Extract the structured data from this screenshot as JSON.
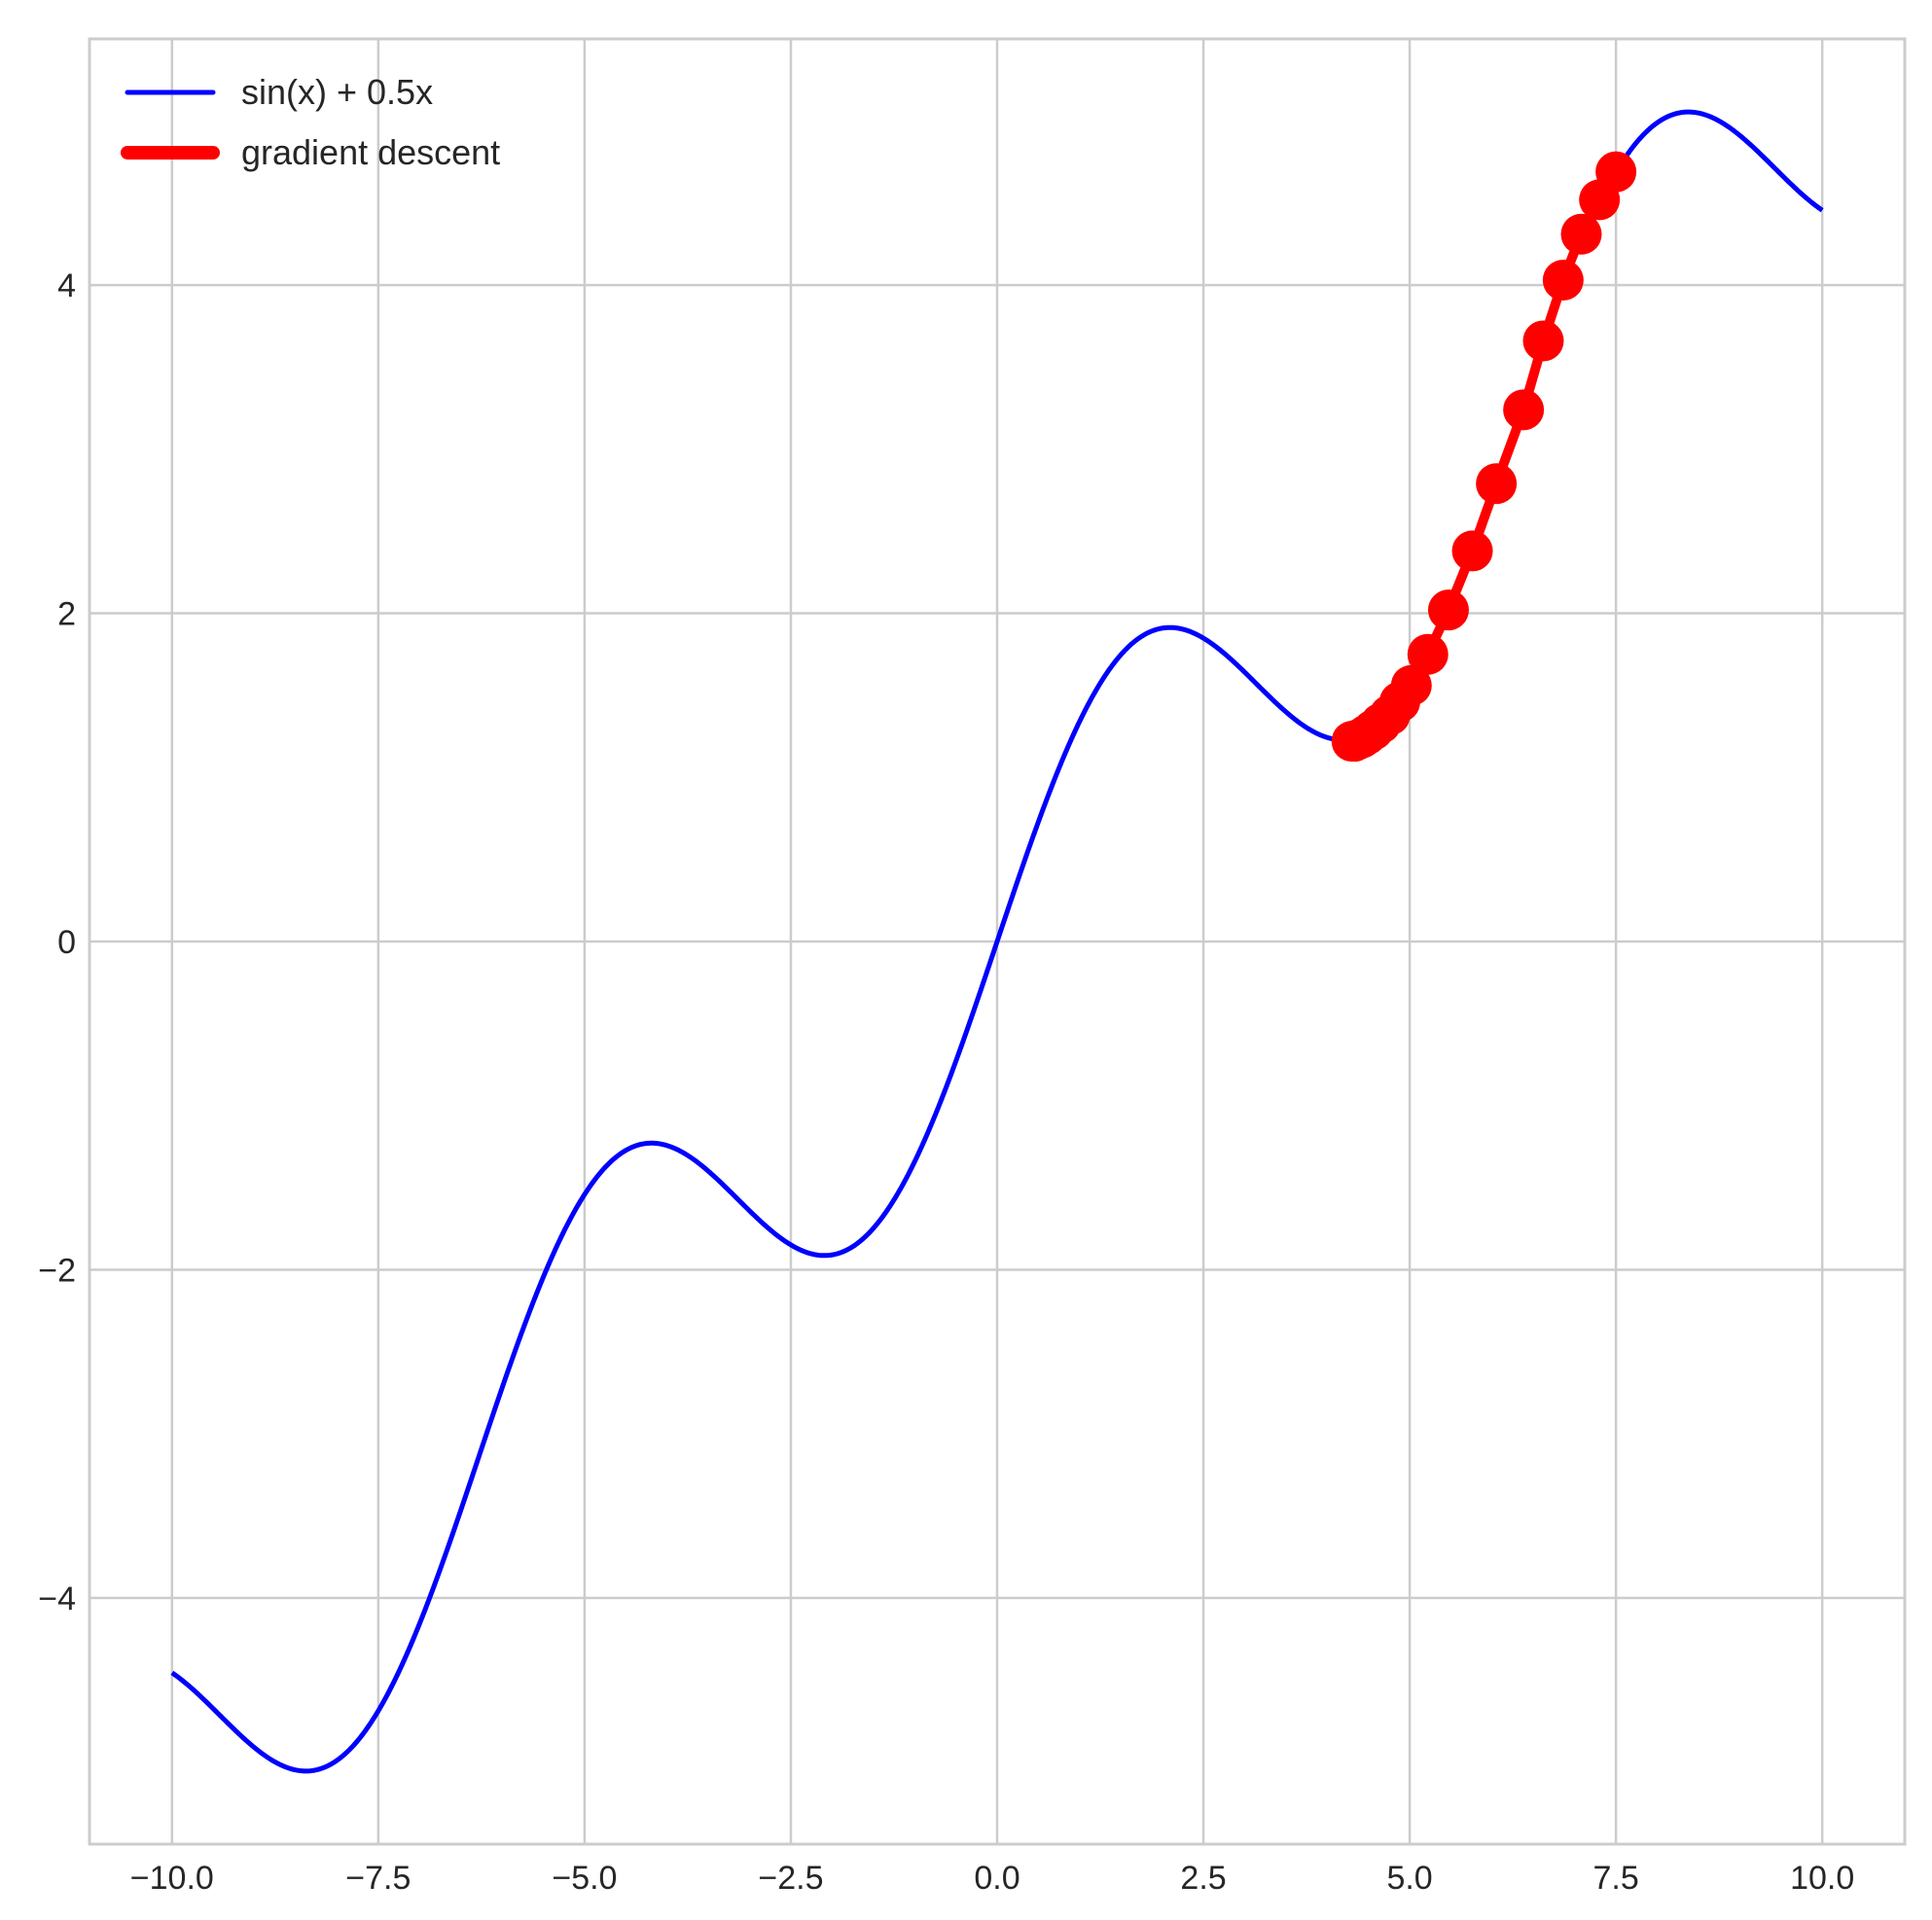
{
  "chart_data": {
    "type": "line",
    "title": "",
    "xlabel": "",
    "ylabel": "",
    "xlim": [
      -11.0,
      11.0
    ],
    "ylim": [
      -5.5,
      5.5
    ],
    "grid": true,
    "x_ticks": [
      -10.0,
      -7.5,
      -5.0,
      -2.5,
      0.0,
      2.5,
      5.0,
      7.5,
      10.0
    ],
    "x_tick_labels": [
      "−10.0",
      "−7.5",
      "−5.0",
      "−2.5",
      "0.0",
      "2.5",
      "5.0",
      "7.5",
      "10.0"
    ],
    "y_ticks": [
      -4,
      -2,
      0,
      2,
      4
    ],
    "y_tick_labels": [
      "−4",
      "−2",
      "0",
      "2",
      "4"
    ],
    "legend_position": "top-left",
    "series": [
      {
        "name": "sin(x) + 0.5x",
        "color": "#0000ff",
        "style": "line",
        "function": "sin(x) + 0.5x",
        "x_range": [
          -10,
          10
        ]
      },
      {
        "name": "gradient descent",
        "color": "#ff0000",
        "style": "line-with-markers",
        "x": [
          7.5,
          7.3,
          7.08,
          6.86,
          6.62,
          6.38,
          6.05,
          5.76,
          5.47,
          5.22,
          5.02,
          4.88,
          4.76,
          4.65,
          4.56,
          4.48,
          4.42,
          4.37,
          4.33,
          4.3
        ],
        "y": [
          4.69,
          4.52,
          4.31,
          4.03,
          3.66,
          3.24,
          2.79,
          2.38,
          2.02,
          1.75,
          1.56,
          1.46,
          1.38,
          1.33,
          1.29,
          1.26,
          1.24,
          1.23,
          1.22,
          1.22
        ]
      }
    ]
  }
}
